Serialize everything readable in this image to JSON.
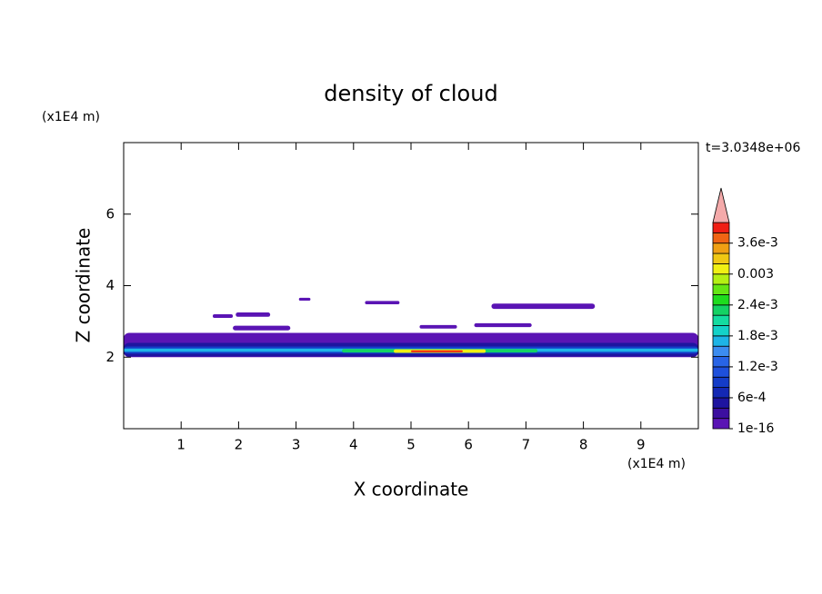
{
  "chart_data": {
    "type": "contour",
    "title": "density of cloud",
    "x_label": "X coordinate",
    "y_label": "Z coordinate",
    "x_unit": "(x1E4 m)",
    "y_unit": "(x1E4 m)",
    "time_label": "t=3.0348e+06",
    "xlim": [
      0,
      10
    ],
    "ylim": [
      0,
      8
    ],
    "xticks": [
      1,
      2,
      3,
      4,
      5,
      6,
      7,
      8,
      9
    ],
    "yticks": [
      2,
      4,
      6
    ],
    "colorbar": {
      "clim": [
        1e-16,
        0.004
      ],
      "ticks": [
        1e-16,
        {
          "value": 0.0006,
          "label": "6e-4"
        },
        {
          "value": 0.0012,
          "label": "1.2e-3"
        },
        {
          "value": 0.0018,
          "label": "1.8e-3"
        },
        {
          "value": 0.0024,
          "label": "2.4e-3"
        },
        0.003,
        {
          "value": 0.0036,
          "label": "3.6e-3"
        }
      ],
      "colors": [
        "#5a14b4",
        "#3c0fa0",
        "#1e14a0",
        "#1428b4",
        "#143cc8",
        "#1e50dc",
        "#2864e6",
        "#3c8cf0",
        "#1eb4e6",
        "#14d2c8",
        "#14dca0",
        "#14d264",
        "#1edc1e",
        "#64e614",
        "#b4f014",
        "#f0f014",
        "#f0c814",
        "#f0a014",
        "#f06414",
        "#f01e14"
      ],
      "over_color": "#f4aaaa"
    },
    "regions": [
      {
        "x": [
          0,
          10
        ],
        "z": [
          2.0,
          2.68
        ],
        "value": 0.0001
      },
      {
        "x": [
          0,
          10
        ],
        "z": [
          2.02,
          2.4
        ],
        "value": 0.0005
      },
      {
        "x": [
          0,
          10
        ],
        "z": [
          2.1,
          2.3
        ],
        "value": 0.0009
      },
      {
        "x": [
          0,
          10
        ],
        "z": [
          2.15,
          2.24
        ],
        "value": 0.0017
      },
      {
        "x": [
          3.8,
          7.2
        ],
        "z": [
          2.13,
          2.23
        ],
        "value": 0.0023
      },
      {
        "x": [
          4.7,
          6.3
        ],
        "z": [
          2.12,
          2.22
        ],
        "value": 0.0031
      },
      {
        "x": [
          5.0,
          5.9
        ],
        "z": [
          2.14,
          2.19
        ],
        "value": 0.0039
      },
      {
        "x": [
          1.55,
          1.9
        ],
        "z": [
          3.1,
          3.2
        ],
        "value": 0.0001
      },
      {
        "x": [
          1.95,
          2.55
        ],
        "z": [
          3.13,
          3.25
        ],
        "value": 0.0001
      },
      {
        "x": [
          1.9,
          2.9
        ],
        "z": [
          2.75,
          2.88
        ],
        "value": 0.0001
      },
      {
        "x": [
          3.05,
          3.25
        ],
        "z": [
          3.58,
          3.66
        ],
        "value": 0.0001
      },
      {
        "x": [
          4.2,
          4.8
        ],
        "z": [
          3.48,
          3.57
        ],
        "value": 0.0001
      },
      {
        "x": [
          5.15,
          5.8
        ],
        "z": [
          2.8,
          2.9
        ],
        "value": 0.0001
      },
      {
        "x": [
          6.1,
          7.1
        ],
        "z": [
          2.84,
          2.95
        ],
        "value": 0.0001
      },
      {
        "x": [
          6.4,
          8.2
        ],
        "z": [
          3.35,
          3.5
        ],
        "value": 0.0001
      }
    ]
  }
}
